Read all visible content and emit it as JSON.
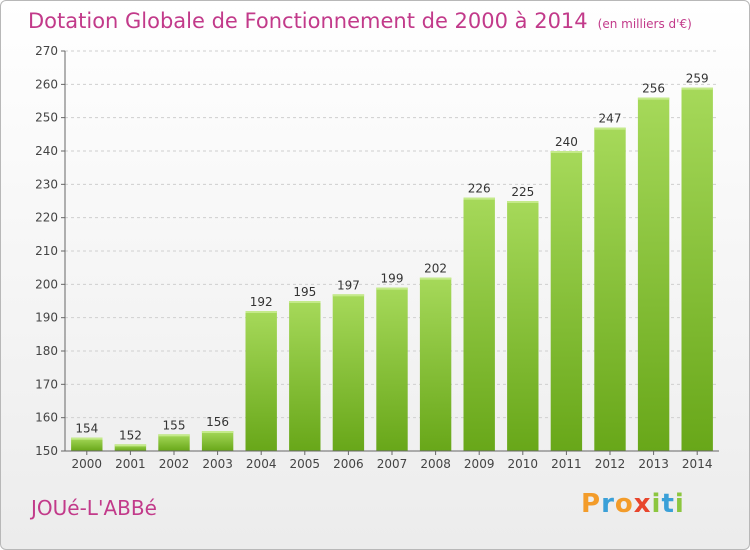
{
  "header": {
    "title": "Dotation Globale de Fonctionnement de 2000 à 2014",
    "subtitle": "(en milliers d'€)"
  },
  "commune_name": "JOUé-L'ABBé",
  "logo_text": "Proxiti",
  "colors": {
    "bar_top": "#a6d95a",
    "bar_bottom": "#68a719",
    "title": "#c23a8a",
    "grid": "#cfcfcf"
  },
  "chart_data": {
    "type": "bar",
    "title": "Dotation Globale de Fonctionnement de 2000 à 2014",
    "subtitle": "(en milliers d'€)",
    "categories": [
      "2000",
      "2001",
      "2002",
      "2003",
      "2004",
      "2005",
      "2006",
      "2007",
      "2008",
      "2009",
      "2010",
      "2011",
      "2012",
      "2013",
      "2014"
    ],
    "values": [
      154,
      152,
      155,
      156,
      192,
      195,
      197,
      199,
      202,
      226,
      225,
      240,
      247,
      256,
      259
    ],
    "ylim": [
      150,
      270
    ],
    "yticks": [
      150,
      160,
      170,
      180,
      190,
      200,
      210,
      220,
      230,
      240,
      250,
      260,
      270
    ],
    "grid": true,
    "xlabel": "",
    "ylabel": ""
  }
}
